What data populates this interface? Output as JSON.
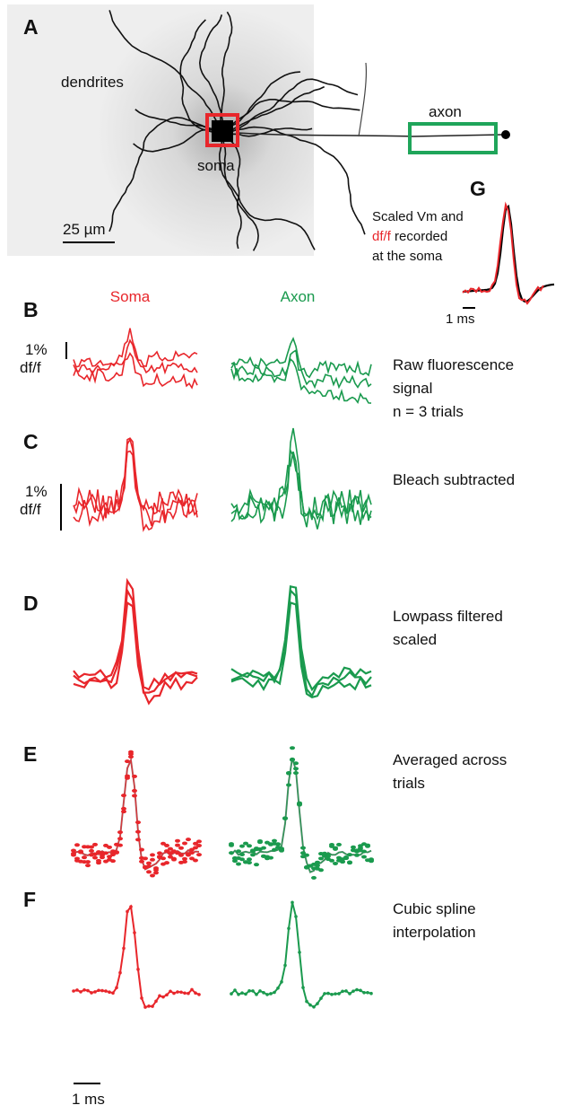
{
  "panel_a": {
    "letter": "A",
    "dendrites": "dendrites",
    "soma": "soma",
    "axon": "axon",
    "scale_bar": "25 µm"
  },
  "panel_g": {
    "letter": "G",
    "line1": "Scaled Vm and",
    "line2_red": "df/f",
    "line2_rest": "recorded",
    "line3": "at the soma",
    "scale_bar": "1 ms"
  },
  "columns": [
    "Soma",
    "Axon"
  ],
  "rows": [
    {
      "letter": "B",
      "description": [
        "Raw fluorescence",
        "signal",
        "n = 3 trials"
      ],
      "scale": [
        "1%",
        "df/f"
      ]
    },
    {
      "letter": "C",
      "description": [
        "Bleach subtracted"
      ],
      "scale": [
        "1%",
        "df/f"
      ]
    },
    {
      "letter": "D",
      "description": [
        "Lowpass filtered",
        "scaled"
      ]
    },
    {
      "letter": "E",
      "description": [
        "Averaged across",
        "trials"
      ]
    },
    {
      "letter": "F",
      "description": [
        "Cubic spline",
        "interpolation"
      ]
    }
  ],
  "time_scale_bar": "1 ms"
}
